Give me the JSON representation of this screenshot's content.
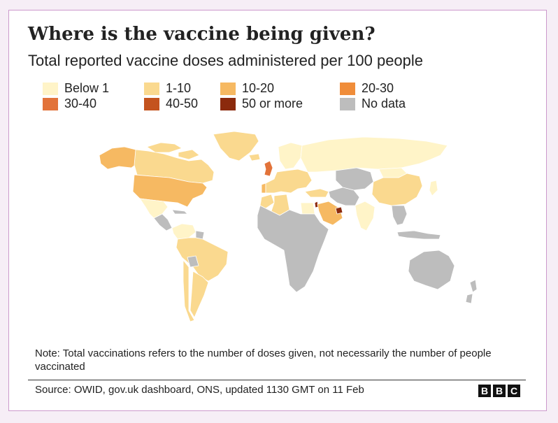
{
  "title": "Where is the vaccine being given?",
  "subtitle": "Total reported vaccine doses administered per 100 people",
  "legend": [
    {
      "label": "Below 1",
      "color": "#fff4c8"
    },
    {
      "label": "1-10",
      "color": "#fad98f"
    },
    {
      "label": "10-20",
      "color": "#f6b962"
    },
    {
      "label": "20-30",
      "color": "#f08d3a"
    },
    {
      "label": "30-40",
      "color": "#e2733a"
    },
    {
      "label": "40-50",
      "color": "#c4531e"
    },
    {
      "label": "50 or more",
      "color": "#8b2a0d"
    },
    {
      "label": "No data",
      "color": "#bdbdbd"
    }
  ],
  "map_fills": {
    "north_america_arctic": "#fad98f",
    "alaska": "#f6b962",
    "canada": "#fad98f",
    "greenland": "#fad98f",
    "usa": "#f6b962",
    "mexico": "#fff4c8",
    "central_america": "#bdbdbd",
    "cuba": "#bdbdbd",
    "south_america": "#fad98f",
    "south_america_north": "#fff4c8",
    "guiana": "#bdbdbd",
    "bolivia": "#bdbdbd",
    "argentina": "#fad98f",
    "chile": "#fad98f",
    "iceland": "#fad98f",
    "uk": "#e2733a",
    "europe": "#fad98f",
    "portugal": "#f6b962",
    "scandinavia": "#fff4c8",
    "russia": "#fff4c8",
    "central_asia": "#bdbdbd",
    "iran": "#bdbdbd",
    "turkey": "#fad98f",
    "israel": "#8b2a0d",
    "uae": "#8b2a0d",
    "arabia": "#f6b962",
    "north_africa_morocco": "#fad98f",
    "algeria": "#fad98f",
    "egypt": "#fff4c8",
    "africa": "#bdbdbd",
    "india": "#fff4c8",
    "china": "#fad98f",
    "mongolia": "#fff4c8",
    "southeast_asia": "#bdbdbd",
    "indonesia": "#bdbdbd",
    "japan": "#fff4c8",
    "australia": "#bdbdbd",
    "new_zealand": "#bdbdbd"
  },
  "note": "Note: Total vaccinations refers to the number of doses given, not necessarily the number of people vaccinated",
  "source": "Source: OWID, gov.uk dashboard, ONS, updated 1130 GMT on 11 Feb",
  "logo": {
    "letters": [
      "B",
      "B",
      "C"
    ]
  }
}
